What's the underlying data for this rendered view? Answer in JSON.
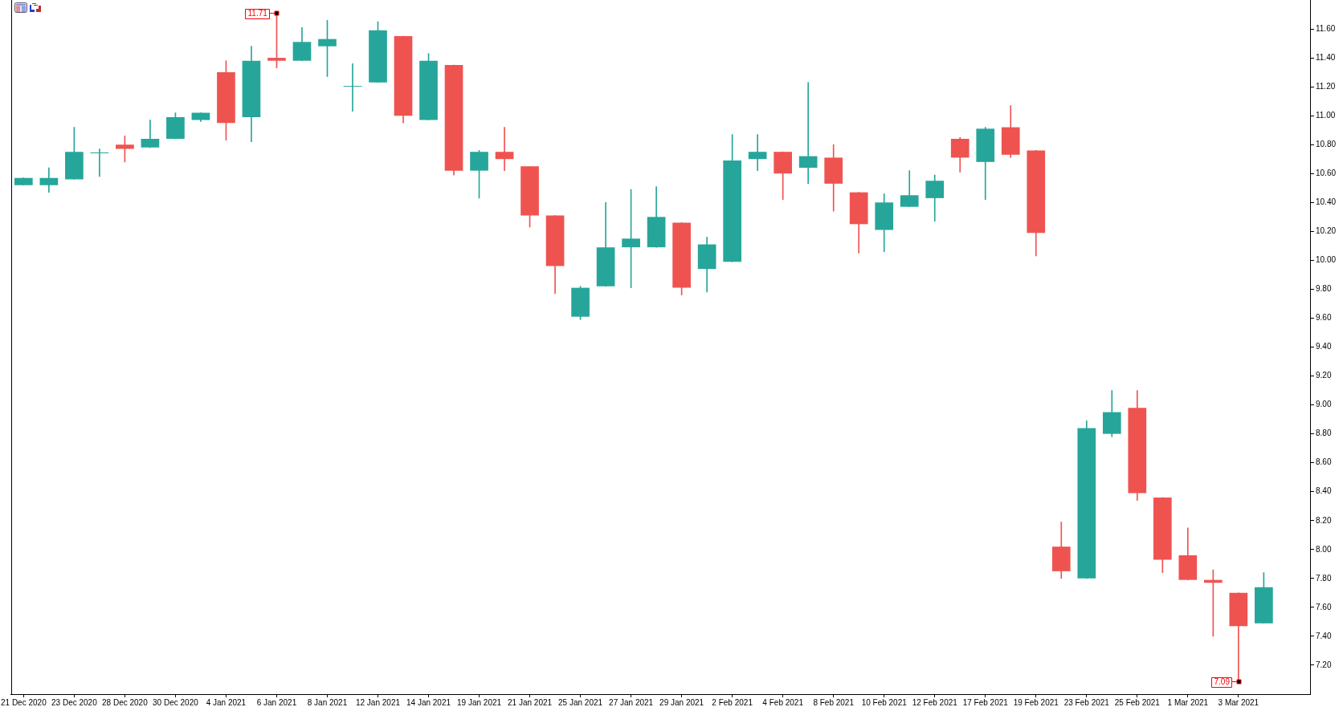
{
  "chart_data": {
    "type": "candlestick",
    "categories": [
      "21 Dec 2020",
      null,
      "23 Dec 2020",
      null,
      "28 Dec 2020",
      null,
      "30 Dec 2020",
      null,
      "4 Jan 2021",
      null,
      "6 Jan 2021",
      null,
      "8 Jan 2021",
      null,
      "12 Jan 2021",
      null,
      "14 Jan 2021",
      null,
      "19 Jan 2021",
      null,
      "21 Jan 2021",
      null,
      "25 Jan 2021",
      null,
      "27 Jan 2021",
      null,
      "29 Jan 2021",
      null,
      "2 Feb 2021",
      null,
      "4 Feb 2021",
      null,
      "8 Feb 2021",
      null,
      "10 Feb 2021",
      null,
      "12 Feb 2021",
      null,
      "17 Feb 2021",
      null,
      "19 Feb 2021",
      null,
      "23 Feb 2021",
      null,
      "25 Feb 2021",
      null,
      "1 Mar 2021",
      null,
      "3 Mar 2021",
      null
    ],
    "ohlc": [
      [
        10.52,
        10.57,
        10.52,
        10.57
      ],
      [
        10.52,
        10.64,
        10.47,
        10.57
      ],
      [
        10.56,
        10.92,
        10.56,
        10.75
      ],
      [
        10.74,
        10.77,
        10.58,
        10.74
      ],
      [
        10.8,
        10.86,
        10.68,
        10.77
      ],
      [
        10.78,
        10.97,
        10.78,
        10.84
      ],
      [
        10.84,
        11.02,
        10.84,
        10.99
      ],
      [
        10.97,
        11.02,
        10.96,
        11.02
      ],
      [
        11.3,
        11.38,
        10.83,
        10.95
      ],
      [
        10.99,
        11.48,
        10.82,
        11.38
      ],
      [
        11.4,
        11.71,
        11.33,
        11.38
      ],
      [
        11.38,
        11.61,
        11.38,
        11.51
      ],
      [
        11.48,
        11.66,
        11.27,
        11.53
      ],
      [
        11.2,
        11.36,
        11.03,
        11.2
      ],
      [
        11.23,
        11.65,
        11.23,
        11.59
      ],
      [
        11.55,
        11.55,
        10.95,
        11.0
      ],
      [
        10.97,
        11.43,
        10.97,
        11.38
      ],
      [
        11.35,
        11.35,
        10.59,
        10.62
      ],
      [
        10.62,
        10.76,
        10.43,
        10.75
      ],
      [
        10.75,
        10.92,
        10.62,
        10.7
      ],
      [
        10.65,
        10.65,
        10.23,
        10.31
      ],
      [
        10.31,
        10.31,
        9.77,
        9.96
      ],
      [
        9.61,
        9.82,
        9.59,
        9.81
      ],
      [
        9.82,
        10.4,
        9.82,
        10.09
      ],
      [
        10.09,
        10.49,
        9.81,
        10.15
      ],
      [
        10.09,
        10.51,
        10.09,
        10.3
      ],
      [
        10.26,
        10.26,
        9.76,
        9.81
      ],
      [
        9.94,
        10.16,
        9.78,
        10.11
      ],
      [
        9.99,
        10.87,
        9.99,
        10.69
      ],
      [
        10.7,
        10.87,
        10.62,
        10.75
      ],
      [
        10.75,
        10.75,
        10.42,
        10.6
      ],
      [
        10.64,
        11.23,
        10.53,
        10.72
      ],
      [
        10.71,
        10.8,
        10.34,
        10.53
      ],
      [
        10.47,
        10.47,
        10.05,
        10.25
      ],
      [
        10.21,
        10.46,
        10.06,
        10.4
      ],
      [
        10.37,
        10.62,
        10.37,
        10.45
      ],
      [
        10.43,
        10.59,
        10.27,
        10.55
      ],
      [
        10.84,
        10.85,
        10.61,
        10.71
      ],
      [
        10.68,
        10.92,
        10.42,
        10.91
      ],
      [
        10.92,
        11.07,
        10.71,
        10.73
      ],
      [
        10.76,
        10.76,
        10.03,
        10.19
      ],
      [
        8.02,
        8.19,
        7.8,
        7.85
      ],
      [
        7.8,
        8.89,
        7.8,
        8.84
      ],
      [
        8.8,
        9.1,
        8.78,
        8.95
      ],
      [
        8.98,
        9.1,
        8.34,
        8.39
      ],
      [
        8.36,
        8.36,
        7.84,
        7.93
      ],
      [
        7.96,
        8.15,
        7.79,
        7.79
      ],
      [
        7.79,
        7.86,
        7.4,
        7.77
      ],
      [
        7.7,
        7.7,
        7.09,
        7.47
      ],
      [
        7.49,
        7.84,
        7.49,
        7.74
      ]
    ],
    "colors": [
      "#26a69a",
      "#26a69a",
      "#26a69a",
      "#26a69a",
      "#ef5350",
      "#26a69a",
      "#26a69a",
      "#26a69a",
      "#ef5350",
      "#26a69a",
      "#ef5350",
      "#26a69a",
      "#26a69a",
      "#26a69a",
      "#26a69a",
      "#ef5350",
      "#26a69a",
      "#ef5350",
      "#26a69a",
      "#ef5350",
      "#ef5350",
      "#ef5350",
      "#26a69a",
      "#26a69a",
      "#26a69a",
      "#26a69a",
      "#ef5350",
      "#26a69a",
      "#26a69a",
      "#26a69a",
      "#ef5350",
      "#26a69a",
      "#ef5350",
      "#ef5350",
      "#26a69a",
      "#26a69a",
      "#26a69a",
      "#ef5350",
      "#26a69a",
      "#ef5350",
      "#ef5350",
      "#ef5350",
      "#26a69a",
      "#26a69a",
      "#ef5350",
      "#ef5350",
      "#ef5350",
      "#ef5350",
      "#ef5350",
      "#26a69a"
    ],
    "ylim": [
      7.0,
      11.8
    ],
    "yticks": [
      {
        "value": 7.2,
        "label": "7.20"
      },
      {
        "value": 7.4,
        "label": "7.40"
      },
      {
        "value": 7.6,
        "label": "7.60"
      },
      {
        "value": 7.8,
        "label": "7.80"
      },
      {
        "value": 8.0,
        "label": "8.00"
      },
      {
        "value": 8.2,
        "label": "8.20"
      },
      {
        "value": 8.4,
        "label": "8.40"
      },
      {
        "value": 8.6,
        "label": "8.60"
      },
      {
        "value": 8.8,
        "label": "8.80"
      },
      {
        "value": 9.0,
        "label": "9.00"
      },
      {
        "value": 9.2,
        "label": "9.20"
      },
      {
        "value": 9.4,
        "label": "9.40"
      },
      {
        "value": 9.6,
        "label": "9.60"
      },
      {
        "value": 9.8,
        "label": "9.80"
      },
      {
        "value": 10.0,
        "label": "10.00"
      },
      {
        "value": 10.2,
        "label": "10.20"
      },
      {
        "value": 10.4,
        "label": "10.40"
      },
      {
        "value": 10.6,
        "label": "10.60"
      },
      {
        "value": 10.8,
        "label": "10.80"
      },
      {
        "value": 11.0,
        "label": "11.00"
      },
      {
        "value": 11.2,
        "label": "11.20"
      },
      {
        "value": 11.4,
        "label": "11.40"
      },
      {
        "value": 11.6,
        "label": "11.60"
      }
    ],
    "annotations": [
      {
        "text": "11.71",
        "x": "6 Jan 2021",
        "y": 11.71
      },
      {
        "text": "7.09",
        "x": "3 Mar 2021",
        "y": 7.09
      }
    ],
    "grid": false,
    "legend": false
  }
}
